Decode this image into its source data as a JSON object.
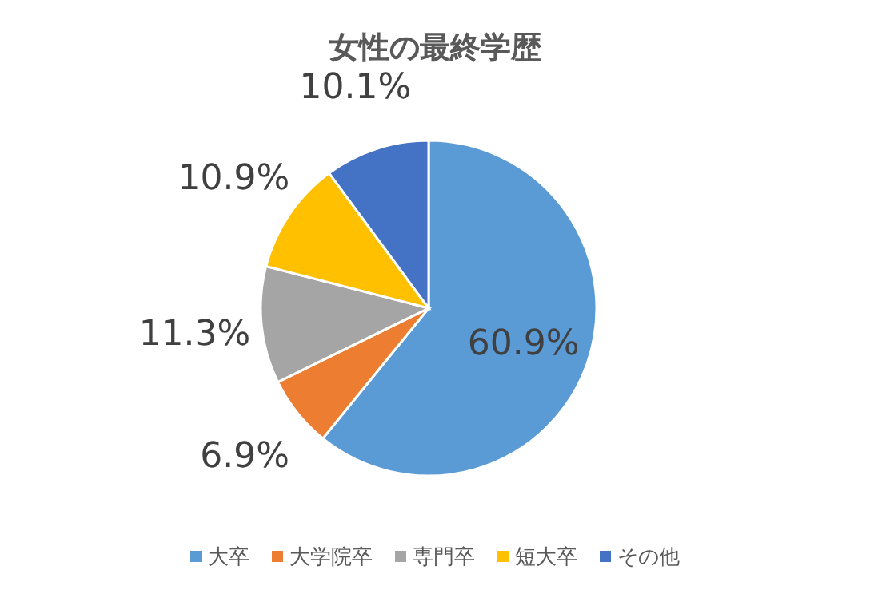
{
  "chart_data": {
    "type": "pie",
    "title": "女性の最終学歴",
    "categories": [
      "大卒",
      "大学院卒",
      "専門卒",
      "短大卒",
      "その他"
    ],
    "values": [
      60.9,
      6.9,
      11.3,
      10.9,
      10.1
    ],
    "colors": [
      "#5b9bd5",
      "#ed7d31",
      "#a5a5a5",
      "#ffc000",
      "#4472c4"
    ],
    "value_labels": [
      "60.9%",
      "6.9%",
      "11.3%",
      "10.9%",
      "10.1%"
    ],
    "legend": "bottom"
  }
}
